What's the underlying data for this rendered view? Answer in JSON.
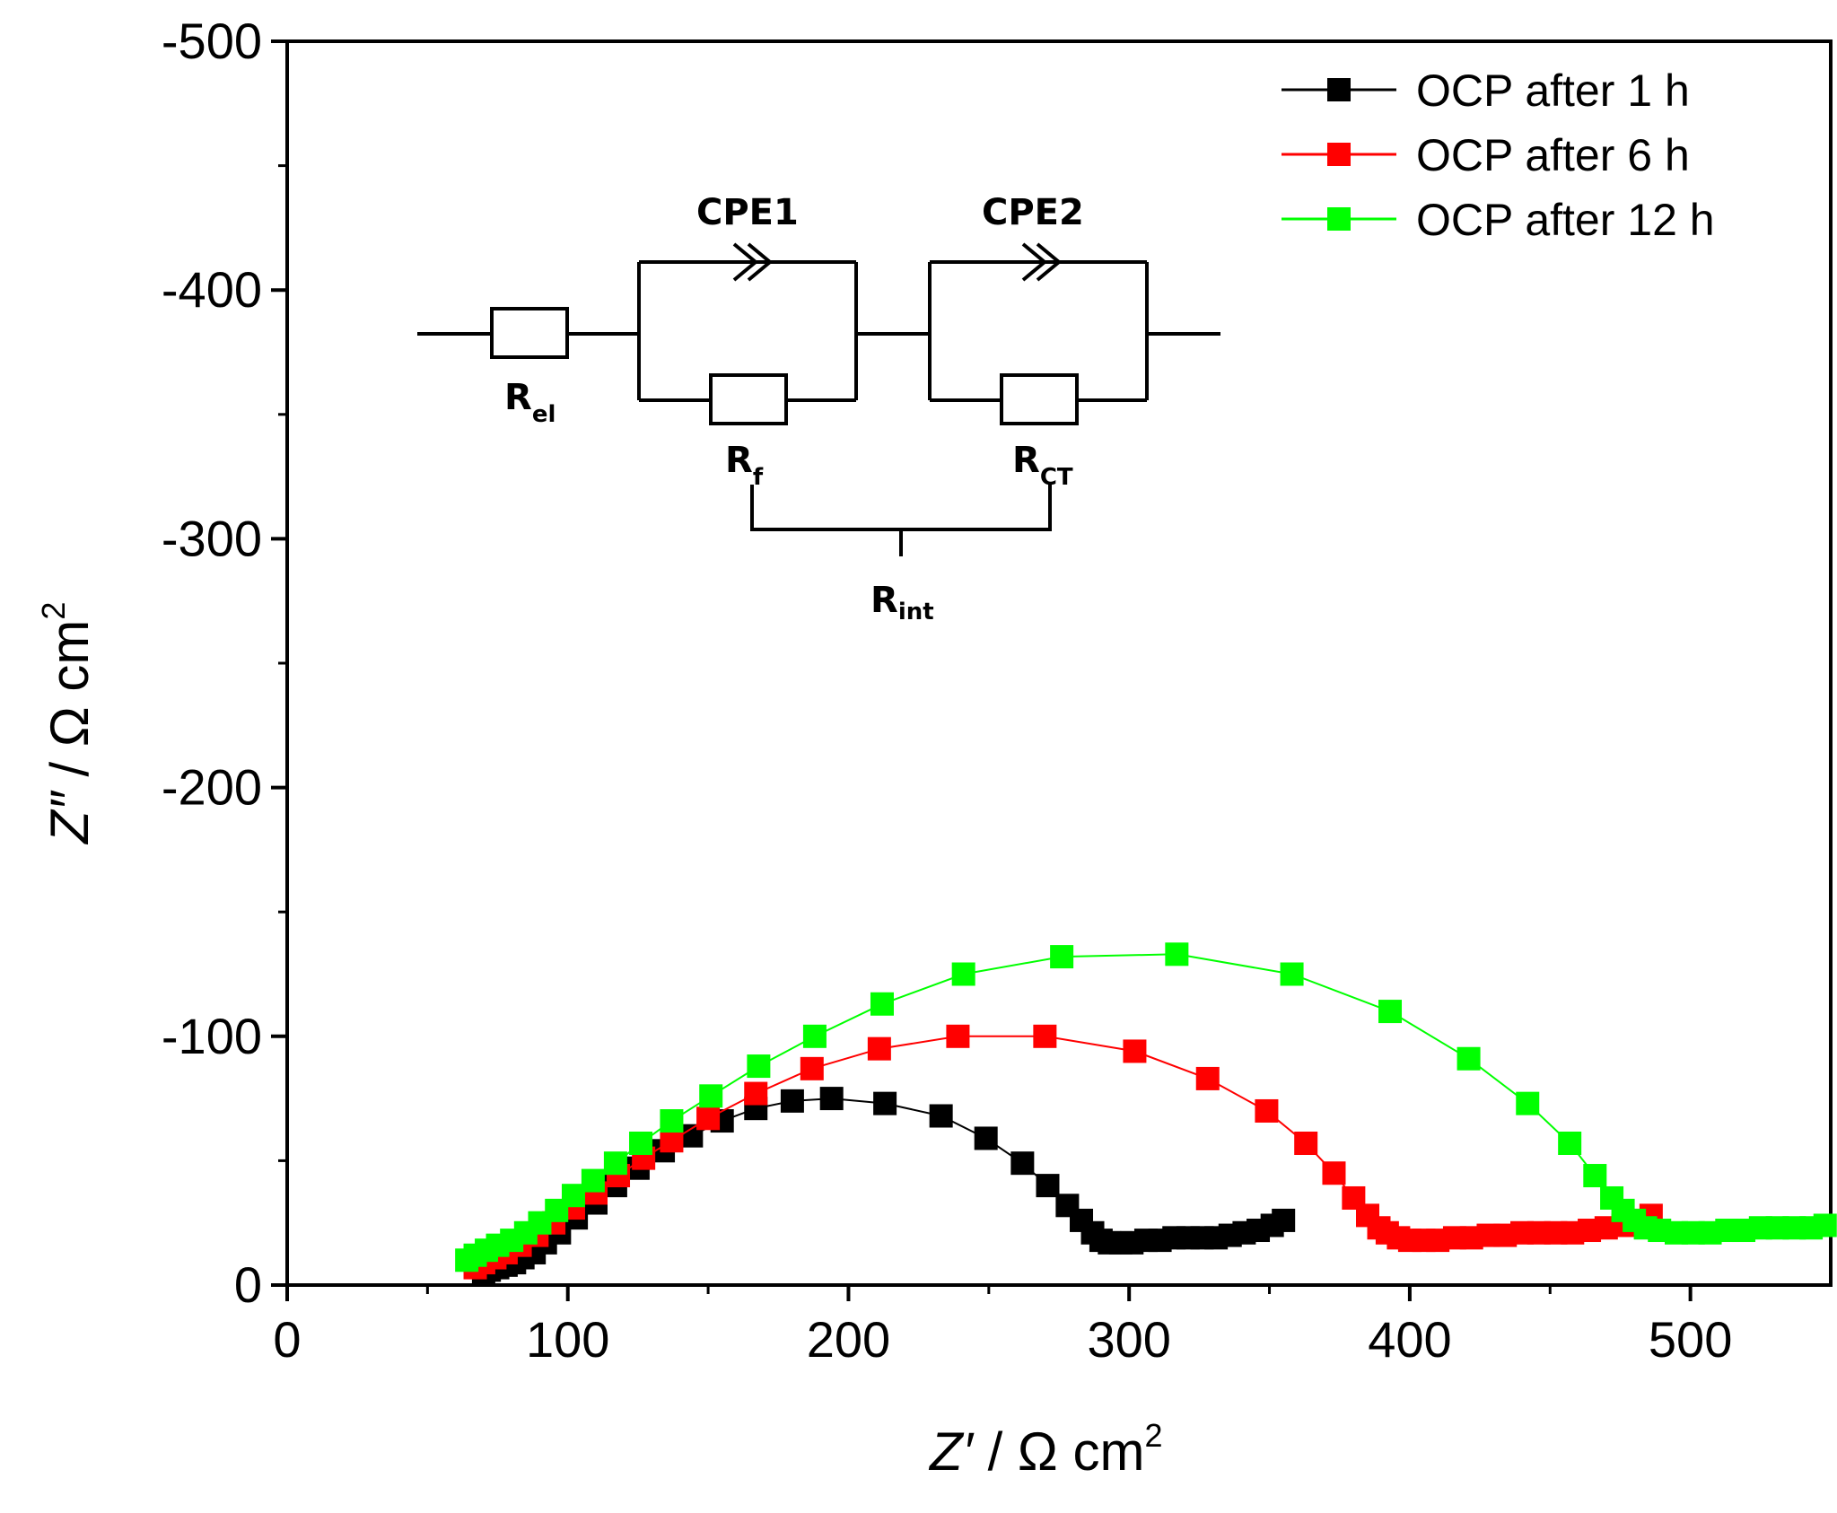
{
  "chart_data": {
    "type": "scatter",
    "title": "",
    "xlabel": "Z′ / Ω cm²",
    "xlabel_parts": {
      "symbol": "Z′",
      "unit": "Ω cm",
      "exp": "2"
    },
    "ylabel": "Z″ / Ω cm²",
    "ylabel_parts": {
      "symbol": "Z″",
      "unit": "Ω cm",
      "exp": "2"
    },
    "xlim": [
      0,
      550
    ],
    "ylim": [
      0,
      -500
    ],
    "x_ticks": [
      "0",
      "100",
      "200",
      "300",
      "400",
      "500"
    ],
    "x_tick_values": [
      0,
      100,
      200,
      300,
      400,
      500
    ],
    "y_ticks": [
      "0",
      "-100",
      "-200",
      "-300",
      "-400",
      "-500"
    ],
    "y_tick_values": [
      0,
      -100,
      -200,
      -300,
      -400,
      -500
    ],
    "legend_position": "top-right",
    "series": [
      {
        "name": "OCP after 1 h",
        "color": "#000000",
        "points": [
          [
            70,
            -5
          ],
          [
            72,
            -6
          ],
          [
            75,
            -7
          ],
          [
            78,
            -8
          ],
          [
            81,
            -9
          ],
          [
            84,
            -11
          ],
          [
            88,
            -13
          ],
          [
            92,
            -17
          ],
          [
            97,
            -21
          ],
          [
            103,
            -27
          ],
          [
            110,
            -33
          ],
          [
            117,
            -40
          ],
          [
            125,
            -47
          ],
          [
            134,
            -54
          ],
          [
            144,
            -60
          ],
          [
            155,
            -66
          ],
          [
            167,
            -71
          ],
          [
            180,
            -74
          ],
          [
            194,
            -75
          ],
          [
            213,
            -73
          ],
          [
            233,
            -68
          ],
          [
            249,
            -59
          ],
          [
            262,
            -49
          ],
          [
            271,
            -40
          ],
          [
            278,
            -32
          ],
          [
            283,
            -26
          ],
          [
            287,
            -21
          ],
          [
            290,
            -18
          ],
          [
            293,
            -17
          ],
          [
            297,
            -17
          ],
          [
            301,
            -17
          ],
          [
            306,
            -18
          ],
          [
            311,
            -18
          ],
          [
            316,
            -19
          ],
          [
            321,
            -19
          ],
          [
            326,
            -19
          ],
          [
            331,
            -19
          ],
          [
            336,
            -20
          ],
          [
            341,
            -21
          ],
          [
            346,
            -22
          ],
          [
            351,
            -24
          ],
          [
            355,
            -26
          ]
        ]
      },
      {
        "name": "OCP after 6 h",
        "color": "#ff0000",
        "points": [
          [
            67,
            -7
          ],
          [
            70,
            -9
          ],
          [
            74,
            -11
          ],
          [
            78,
            -13
          ],
          [
            83,
            -16
          ],
          [
            89,
            -20
          ],
          [
            95,
            -25
          ],
          [
            102,
            -31
          ],
          [
            110,
            -37
          ],
          [
            118,
            -44
          ],
          [
            127,
            -51
          ],
          [
            137,
            -58
          ],
          [
            150,
            -67
          ],
          [
            167,
            -77
          ],
          [
            187,
            -87
          ],
          [
            211,
            -95
          ],
          [
            239,
            -100
          ],
          [
            270,
            -100
          ],
          [
            302,
            -94
          ],
          [
            328,
            -83
          ],
          [
            349,
            -70
          ],
          [
            363,
            -57
          ],
          [
            373,
            -45
          ],
          [
            380,
            -35
          ],
          [
            385,
            -28
          ],
          [
            389,
            -23
          ],
          [
            392,
            -21
          ],
          [
            396,
            -19
          ],
          [
            400,
            -18
          ],
          [
            405,
            -18
          ],
          [
            410,
            -18
          ],
          [
            416,
            -19
          ],
          [
            422,
            -19
          ],
          [
            428,
            -20
          ],
          [
            434,
            -20
          ],
          [
            440,
            -21
          ],
          [
            446,
            -21
          ],
          [
            452,
            -21
          ],
          [
            458,
            -21
          ],
          [
            464,
            -22
          ],
          [
            470,
            -23
          ],
          [
            476,
            -24
          ],
          [
            482,
            -26
          ],
          [
            486,
            -28
          ]
        ]
      },
      {
        "name": "OCP after 12 h",
        "color": "#00ff00",
        "points": [
          [
            64,
            -10
          ],
          [
            67,
            -12
          ],
          [
            71,
            -14
          ],
          [
            75,
            -16
          ],
          [
            80,
            -18
          ],
          [
            85,
            -21
          ],
          [
            90,
            -25
          ],
          [
            96,
            -30
          ],
          [
            102,
            -36
          ],
          [
            109,
            -42
          ],
          [
            117,
            -49
          ],
          [
            126,
            -57
          ],
          [
            137,
            -66
          ],
          [
            151,
            -76
          ],
          [
            168,
            -88
          ],
          [
            188,
            -100
          ],
          [
            212,
            -113
          ],
          [
            241,
            -125
          ],
          [
            276,
            -132
          ],
          [
            317,
            -133
          ],
          [
            358,
            -125
          ],
          [
            393,
            -110
          ],
          [
            421,
            -91
          ],
          [
            442,
            -73
          ],
          [
            457,
            -57
          ],
          [
            466,
            -44
          ],
          [
            472,
            -35
          ],
          [
            476,
            -30
          ],
          [
            480,
            -26
          ],
          [
            484,
            -23
          ],
          [
            489,
            -22
          ],
          [
            495,
            -21
          ],
          [
            501,
            -21
          ],
          [
            507,
            -21
          ],
          [
            513,
            -22
          ],
          [
            519,
            -22
          ],
          [
            525,
            -23
          ],
          [
            531,
            -23
          ],
          [
            537,
            -23
          ],
          [
            543,
            -23
          ],
          [
            548,
            -24
          ]
        ]
      }
    ],
    "inset_circuit": {
      "elements": [
        "R_el",
        "CPE1",
        "R_f",
        "CPE2",
        "R_CT",
        "R_int"
      ],
      "labels": {
        "cpe1": "CPE1",
        "cpe2": "CPE2",
        "rel_main": "R",
        "rel_sub": "el",
        "rf_main": "R",
        "rf_sub": "f",
        "rct_main": "R",
        "rct_sub": "CT",
        "rint_main": "R",
        "rint_sub": "int"
      }
    }
  }
}
